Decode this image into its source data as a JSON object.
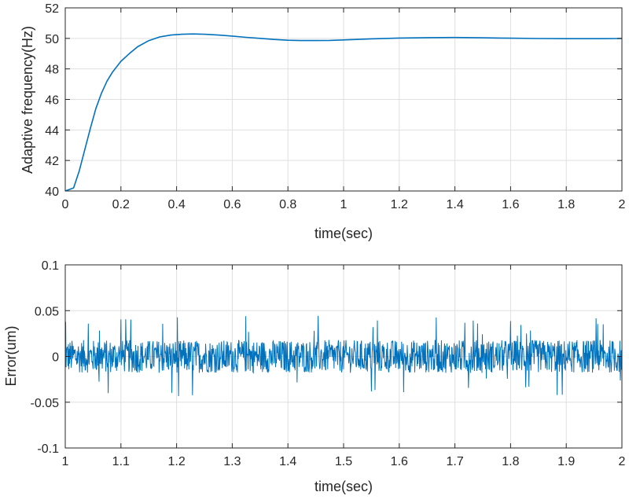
{
  "chart_data": [
    {
      "type": "line",
      "xlabel": "time(sec)",
      "ylabel": "Adaptive frequency(Hz)",
      "xlim": [
        0,
        2
      ],
      "ylim": [
        40,
        52
      ],
      "grid": true,
      "xticks": [
        0,
        0.2,
        0.4,
        0.6,
        0.8,
        1,
        1.2,
        1.4,
        1.6,
        1.8,
        2
      ],
      "xtick_labels": [
        "0",
        "0.2",
        "0.4",
        "0.6",
        "0.8",
        "1",
        "1.2",
        "1.4",
        "1.6",
        "1.8",
        "2"
      ],
      "yticks": [
        40,
        42,
        44,
        46,
        48,
        50,
        52
      ],
      "ytick_labels": [
        "40",
        "42",
        "44",
        "46",
        "48",
        "50",
        "52"
      ],
      "color": "#0072BD",
      "series": [
        {
          "x": [
            0,
            0.03,
            0.05,
            0.07,
            0.09,
            0.11,
            0.13,
            0.15,
            0.17,
            0.2,
            0.23,
            0.26,
            0.3,
            0.34,
            0.38,
            0.42,
            0.46,
            0.5,
            0.55,
            0.6,
            0.65,
            0.7,
            0.75,
            0.8,
            0.85,
            0.9,
            0.95,
            1.0,
            1.1,
            1.2,
            1.3,
            1.4,
            1.5,
            1.6,
            1.7,
            1.8,
            1.9,
            2.0
          ],
          "values": [
            39.9,
            40.2,
            41.3,
            42.7,
            44.1,
            45.4,
            46.4,
            47.2,
            47.8,
            48.5,
            49.0,
            49.45,
            49.85,
            50.1,
            50.22,
            50.27,
            50.29,
            50.27,
            50.22,
            50.15,
            50.07,
            50.0,
            49.93,
            49.88,
            49.86,
            49.86,
            49.87,
            49.9,
            49.97,
            50.02,
            50.05,
            50.06,
            50.04,
            50.01,
            49.99,
            49.98,
            49.98,
            49.99
          ]
        }
      ]
    },
    {
      "type": "line",
      "xlabel": "time(sec)",
      "ylabel": "Error(um)",
      "xlim": [
        1,
        2
      ],
      "ylim": [
        -0.1,
        0.1
      ],
      "grid": true,
      "xticks": [
        1,
        1.1,
        1.2,
        1.3,
        1.4,
        1.5,
        1.6,
        1.7,
        1.8,
        1.9,
        2
      ],
      "xtick_labels": [
        "1",
        "1.1",
        "1.2",
        "1.3",
        "1.4",
        "1.5",
        "1.6",
        "1.7",
        "1.8",
        "1.9",
        "2"
      ],
      "yticks": [
        -0.1,
        -0.05,
        0,
        0.05,
        0.1
      ],
      "ytick_labels": [
        "-0.1",
        "-0.05",
        "0",
        "0.05",
        "0.1"
      ],
      "color": "#0072BD",
      "noise": {
        "center": 0,
        "band_amplitude": 0.018,
        "peak_amplitude": 0.045,
        "max_value": 0.045,
        "min_value": -0.05
      }
    }
  ]
}
